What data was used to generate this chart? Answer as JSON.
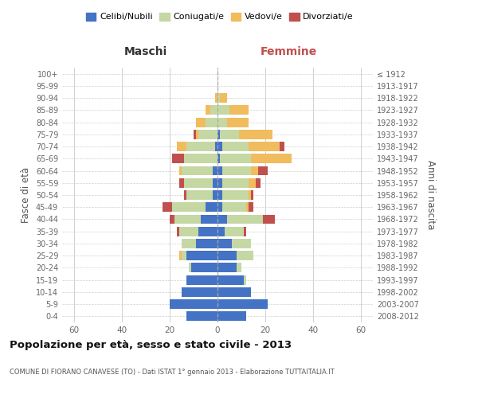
{
  "age_groups": [
    "0-4",
    "5-9",
    "10-14",
    "15-19",
    "20-24",
    "25-29",
    "30-34",
    "35-39",
    "40-44",
    "45-49",
    "50-54",
    "55-59",
    "60-64",
    "65-69",
    "70-74",
    "75-79",
    "80-84",
    "85-89",
    "90-94",
    "95-99",
    "100+"
  ],
  "birth_years": [
    "2008-2012",
    "2003-2007",
    "1998-2002",
    "1993-1997",
    "1988-1992",
    "1983-1987",
    "1978-1982",
    "1973-1977",
    "1968-1972",
    "1963-1967",
    "1958-1962",
    "1953-1957",
    "1948-1952",
    "1943-1947",
    "1938-1942",
    "1933-1937",
    "1928-1932",
    "1923-1927",
    "1918-1922",
    "1913-1917",
    "≤ 1912"
  ],
  "male": {
    "celibi": [
      13,
      20,
      15,
      13,
      11,
      13,
      9,
      8,
      7,
      5,
      2,
      2,
      2,
      0,
      1,
      0,
      0,
      0,
      0,
      0,
      0
    ],
    "coniugati": [
      0,
      0,
      0,
      0,
      1,
      2,
      6,
      8,
      11,
      14,
      11,
      12,
      13,
      14,
      12,
      8,
      5,
      3,
      0,
      0,
      0
    ],
    "vedovi": [
      0,
      0,
      0,
      0,
      0,
      1,
      0,
      0,
      0,
      0,
      0,
      0,
      1,
      0,
      4,
      1,
      4,
      2,
      1,
      0,
      0
    ],
    "divorziati": [
      0,
      0,
      0,
      0,
      0,
      0,
      0,
      1,
      2,
      4,
      1,
      2,
      0,
      5,
      0,
      1,
      0,
      0,
      0,
      0,
      0
    ]
  },
  "female": {
    "nubili": [
      12,
      21,
      14,
      11,
      8,
      8,
      6,
      3,
      4,
      2,
      2,
      2,
      2,
      1,
      2,
      1,
      0,
      0,
      0,
      0,
      0
    ],
    "coniugate": [
      0,
      0,
      0,
      1,
      2,
      7,
      8,
      8,
      15,
      10,
      11,
      11,
      12,
      13,
      11,
      8,
      4,
      5,
      1,
      0,
      0
    ],
    "vedove": [
      0,
      0,
      0,
      0,
      0,
      0,
      0,
      0,
      0,
      1,
      1,
      3,
      3,
      17,
      13,
      14,
      9,
      8,
      3,
      0,
      0
    ],
    "divorziate": [
      0,
      0,
      0,
      0,
      0,
      0,
      0,
      1,
      5,
      2,
      1,
      2,
      4,
      0,
      2,
      0,
      0,
      0,
      0,
      0,
      0
    ]
  },
  "colors": {
    "celibi": "#4472c4",
    "coniugati": "#c5d8a4",
    "vedovi": "#f0bc5e",
    "divorziati": "#c0504d"
  },
  "xlim": 65,
  "title": "Popolazione per età, sesso e stato civile - 2013",
  "subtitle": "COMUNE DI FIORANO CANAVESE (TO) - Dati ISTAT 1° gennaio 2013 - Elaborazione TUTTAITALIA.IT",
  "ylabel_left": "Fasce di età",
  "ylabel_right": "Anni di nascita",
  "xlabel_left": "Maschi",
  "xlabel_right": "Femmine",
  "bg_color": "#ffffff",
  "grid_color": "#d0d0d0"
}
